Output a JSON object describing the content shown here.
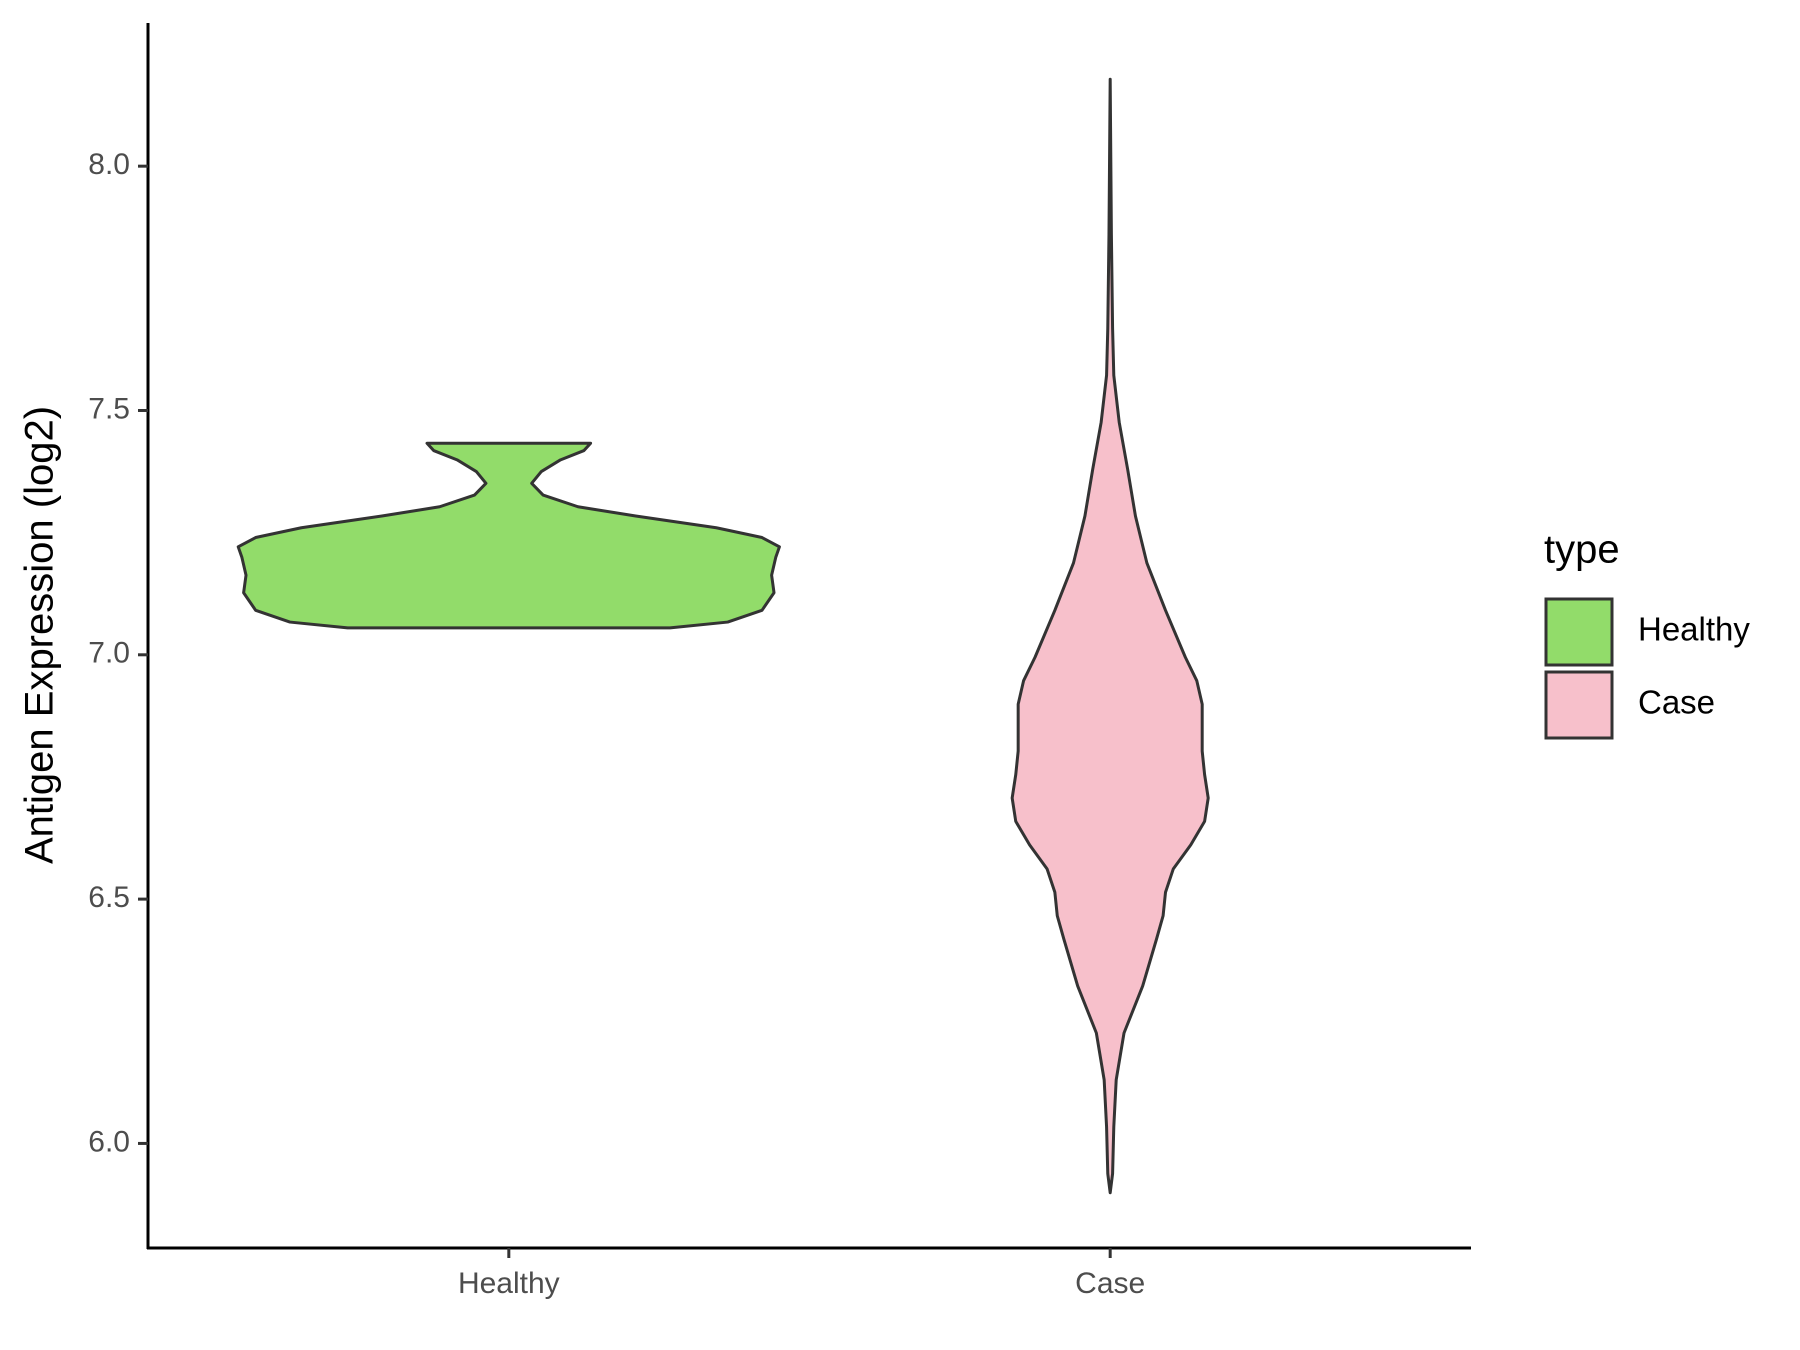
{
  "chart_data": {
    "type": "violin",
    "y_label": "Antigen Expression (log2)",
    "categories": [
      "Healthy",
      "Case"
    ],
    "ylim": [
      5.786,
      8.293
    ],
    "yticks": [
      {
        "value": 6,
        "label": "6.0"
      },
      {
        "value": 6.5,
        "label": "6.5"
      },
      {
        "value": 7,
        "label": "7.0"
      },
      {
        "value": 7.5,
        "label": "7.5"
      },
      {
        "value": 8,
        "label": "8.0"
      }
    ],
    "legend_title": "type",
    "legend_position": "right",
    "series": [
      {
        "name": "Healthy",
        "color": "#92dc6a",
        "y": [
          7.055,
          7.067,
          7.091,
          7.127,
          7.163,
          7.2,
          7.221,
          7.24,
          7.26,
          7.284,
          7.303,
          7.327,
          7.351,
          7.375,
          7.399,
          7.418,
          7.433
        ],
        "width": [
          0.268,
          0.364,
          0.421,
          0.441,
          0.437,
          0.444,
          0.45,
          0.421,
          0.345,
          0.211,
          0.115,
          0.057,
          0.038,
          0.054,
          0.086,
          0.125,
          0.136
        ]
      },
      {
        "name": "Case",
        "color": "#f7c0cb",
        "y": [
          5.899,
          5.938,
          6.034,
          6.13,
          6.226,
          6.322,
          6.418,
          6.466,
          6.514,
          6.562,
          6.611,
          6.659,
          6.707,
          6.755,
          6.803,
          6.851,
          6.899,
          6.947,
          6.995,
          7.091,
          7.188,
          7.284,
          7.38,
          7.476,
          7.572,
          7.668,
          7.861,
          8.178
        ],
        "width": [
          0,
          0.004,
          0.006,
          0.01,
          0.023,
          0.054,
          0.077,
          0.088,
          0.092,
          0.105,
          0.134,
          0.157,
          0.163,
          0.157,
          0.153,
          0.153,
          0.153,
          0.144,
          0.125,
          0.092,
          0.061,
          0.042,
          0.029,
          0.015,
          0.006,
          0.004,
          0.002,
          0
        ]
      }
    ]
  }
}
